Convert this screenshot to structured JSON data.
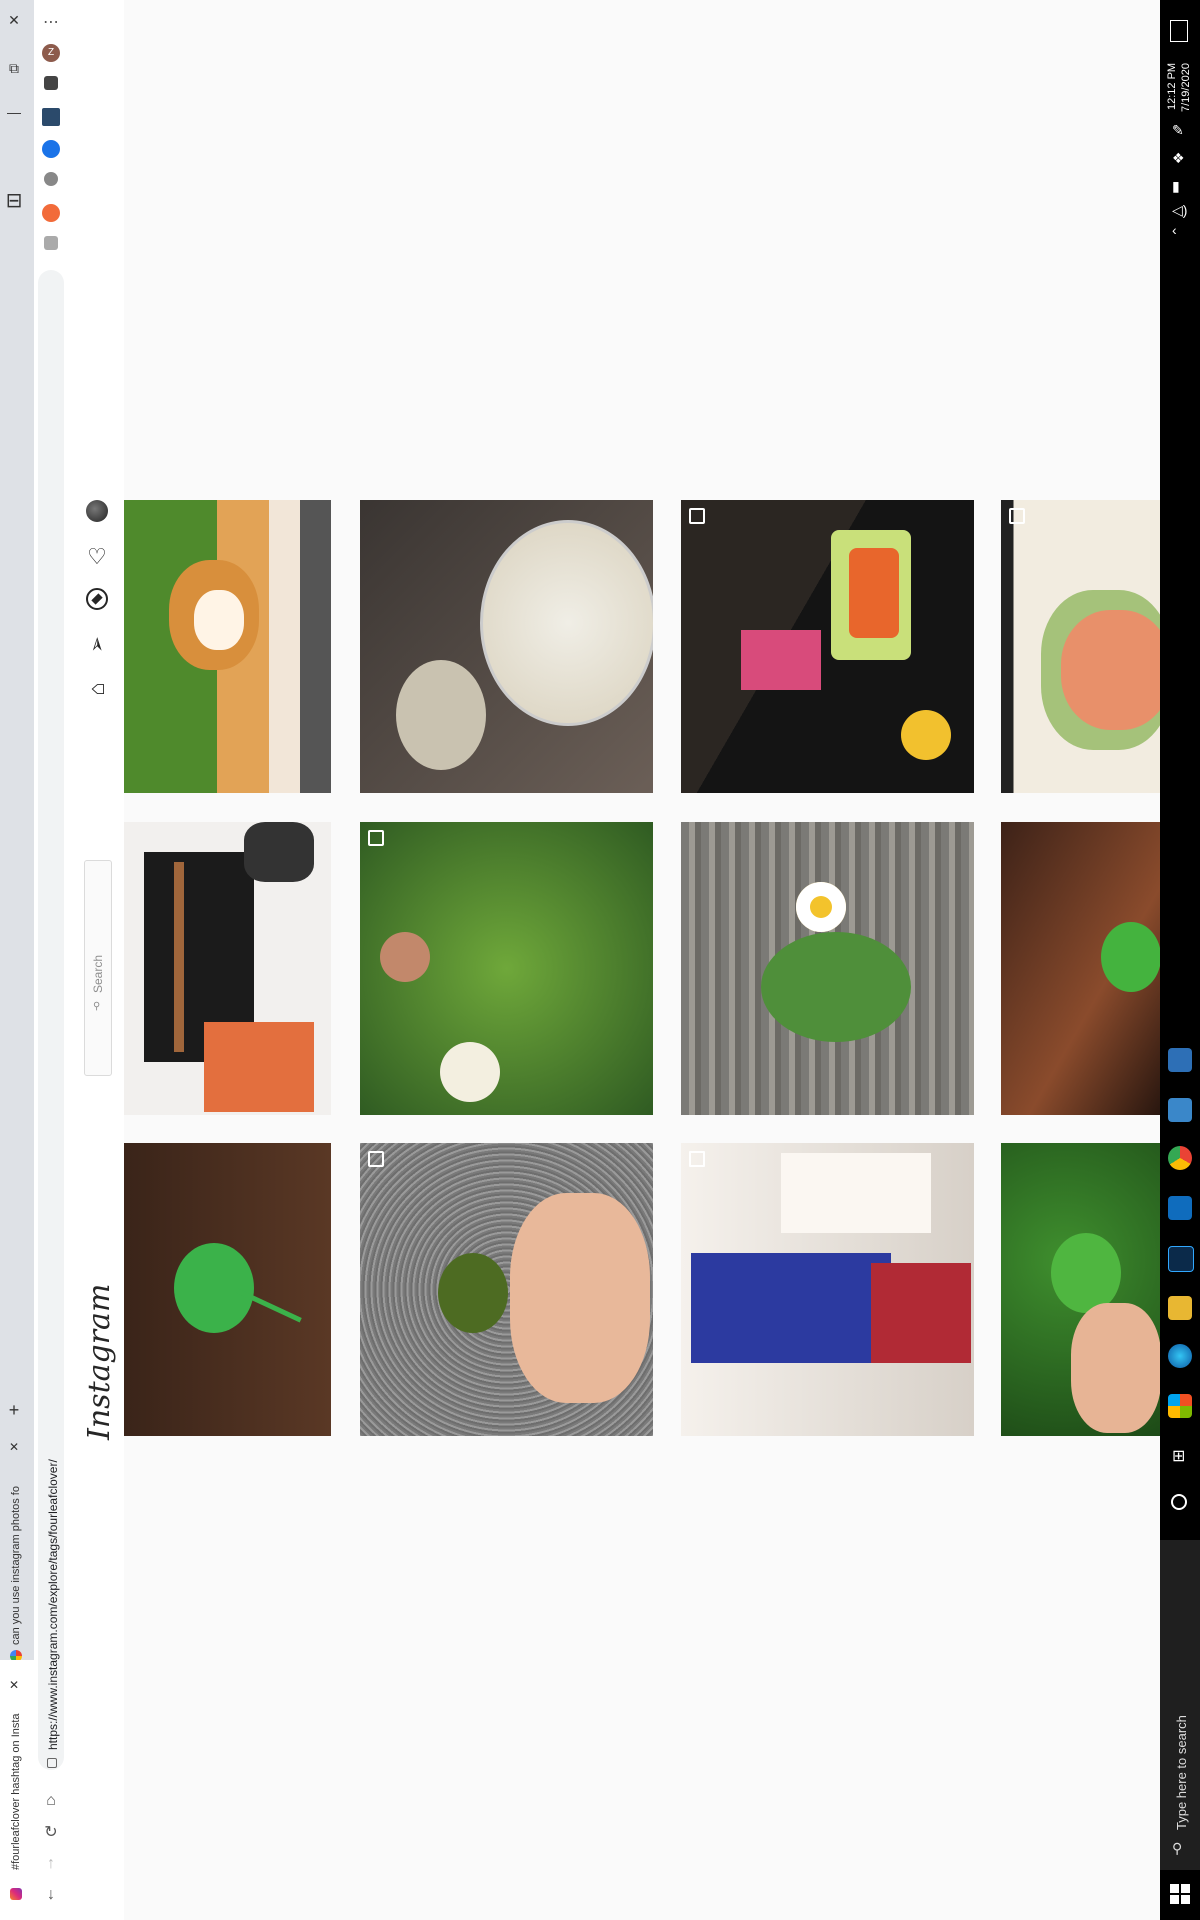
{
  "browser": {
    "tabs": [
      {
        "title": "#fourleafclover hashtag on Insta"
      },
      {
        "title": "can you use instagram photos fo"
      }
    ],
    "new_tab_symbol": "+",
    "close_symbol": "✕",
    "url": "https://www.instagram.com/explore/tags/fourleafclover/",
    "profile_initial": "Z"
  },
  "instagram": {
    "logo": "Instagram",
    "search_placeholder": "Search"
  },
  "taskbar": {
    "search_placeholder": "Type here to search",
    "time": "12:12 PM",
    "date": "7/19/2020"
  },
  "colors": {
    "taskbar_bg": "#000000",
    "page_bg": "#fafafa",
    "tabstrip_bg": "#dee1e6"
  }
}
